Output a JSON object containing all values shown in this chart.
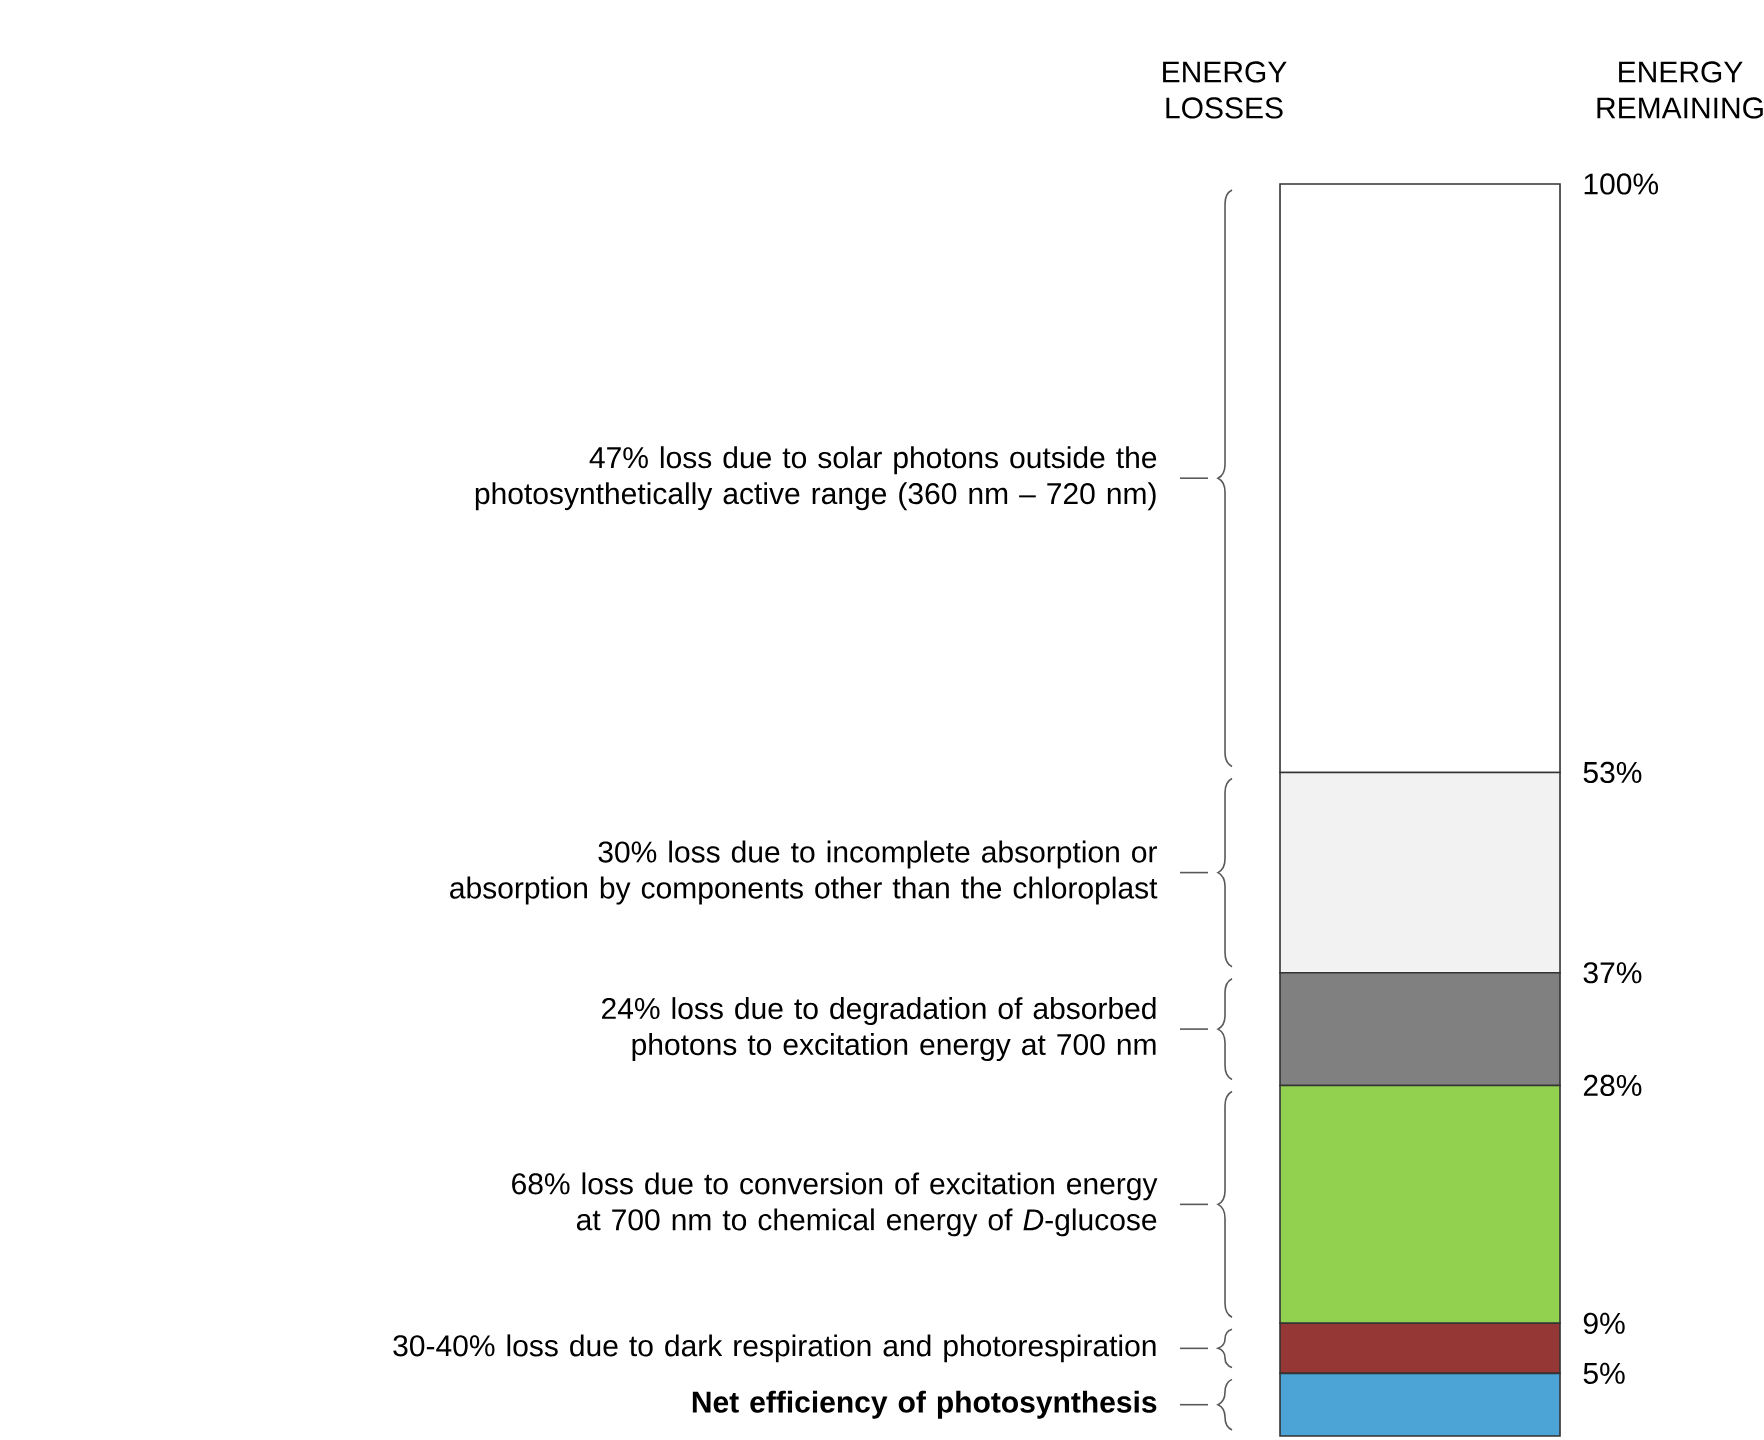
{
  "chart_data": {
    "type": "bar",
    "stacked": true,
    "categories": [
      null
    ],
    "series": [
      {
        "color": "#4ba3d6",
        "values": [
          5
        ]
      },
      {
        "color": "#953735",
        "values": [
          4
        ]
      },
      {
        "color": "#92d050",
        "values": [
          19
        ]
      },
      {
        "color": "#808080",
        "values": [
          9
        ]
      },
      {
        "color": "#f2f2f2",
        "values": [
          16
        ]
      },
      {
        "color": "#ffffff",
        "values": [
          47
        ]
      }
    ],
    "ylabel": "ENERGY REMAINING",
    "ylim": [
      0,
      100
    ],
    "yticks": [
      {
        "value": 100,
        "label": "100%"
      },
      {
        "value": 53,
        "label": "53%"
      },
      {
        "value": 37,
        "label": "37%"
      },
      {
        "value": 28,
        "label": "28%"
      },
      {
        "value": 9,
        "label": "9%"
      },
      {
        "value": 5,
        "label": "5%"
      }
    ],
    "tick_labels": "y",
    "annotations": [
      "ENERGY LOSSES",
      "47% loss due to solar photons outside the photosynthetically active range (360 nm – 720 nm)",
      "30% loss due to incomplete absorption or absorption by components other than the chloroplast",
      "24% loss due to degradation of absorbed photons to excitation energy at 700 nm",
      "68% loss due to conversion of excitation energy at 700 nm to chemical energy of *D*-glucose",
      "30-40% loss due to dark respiration and photorespiration",
      "Net efficiency of photosynthesis"
    ]
  }
}
